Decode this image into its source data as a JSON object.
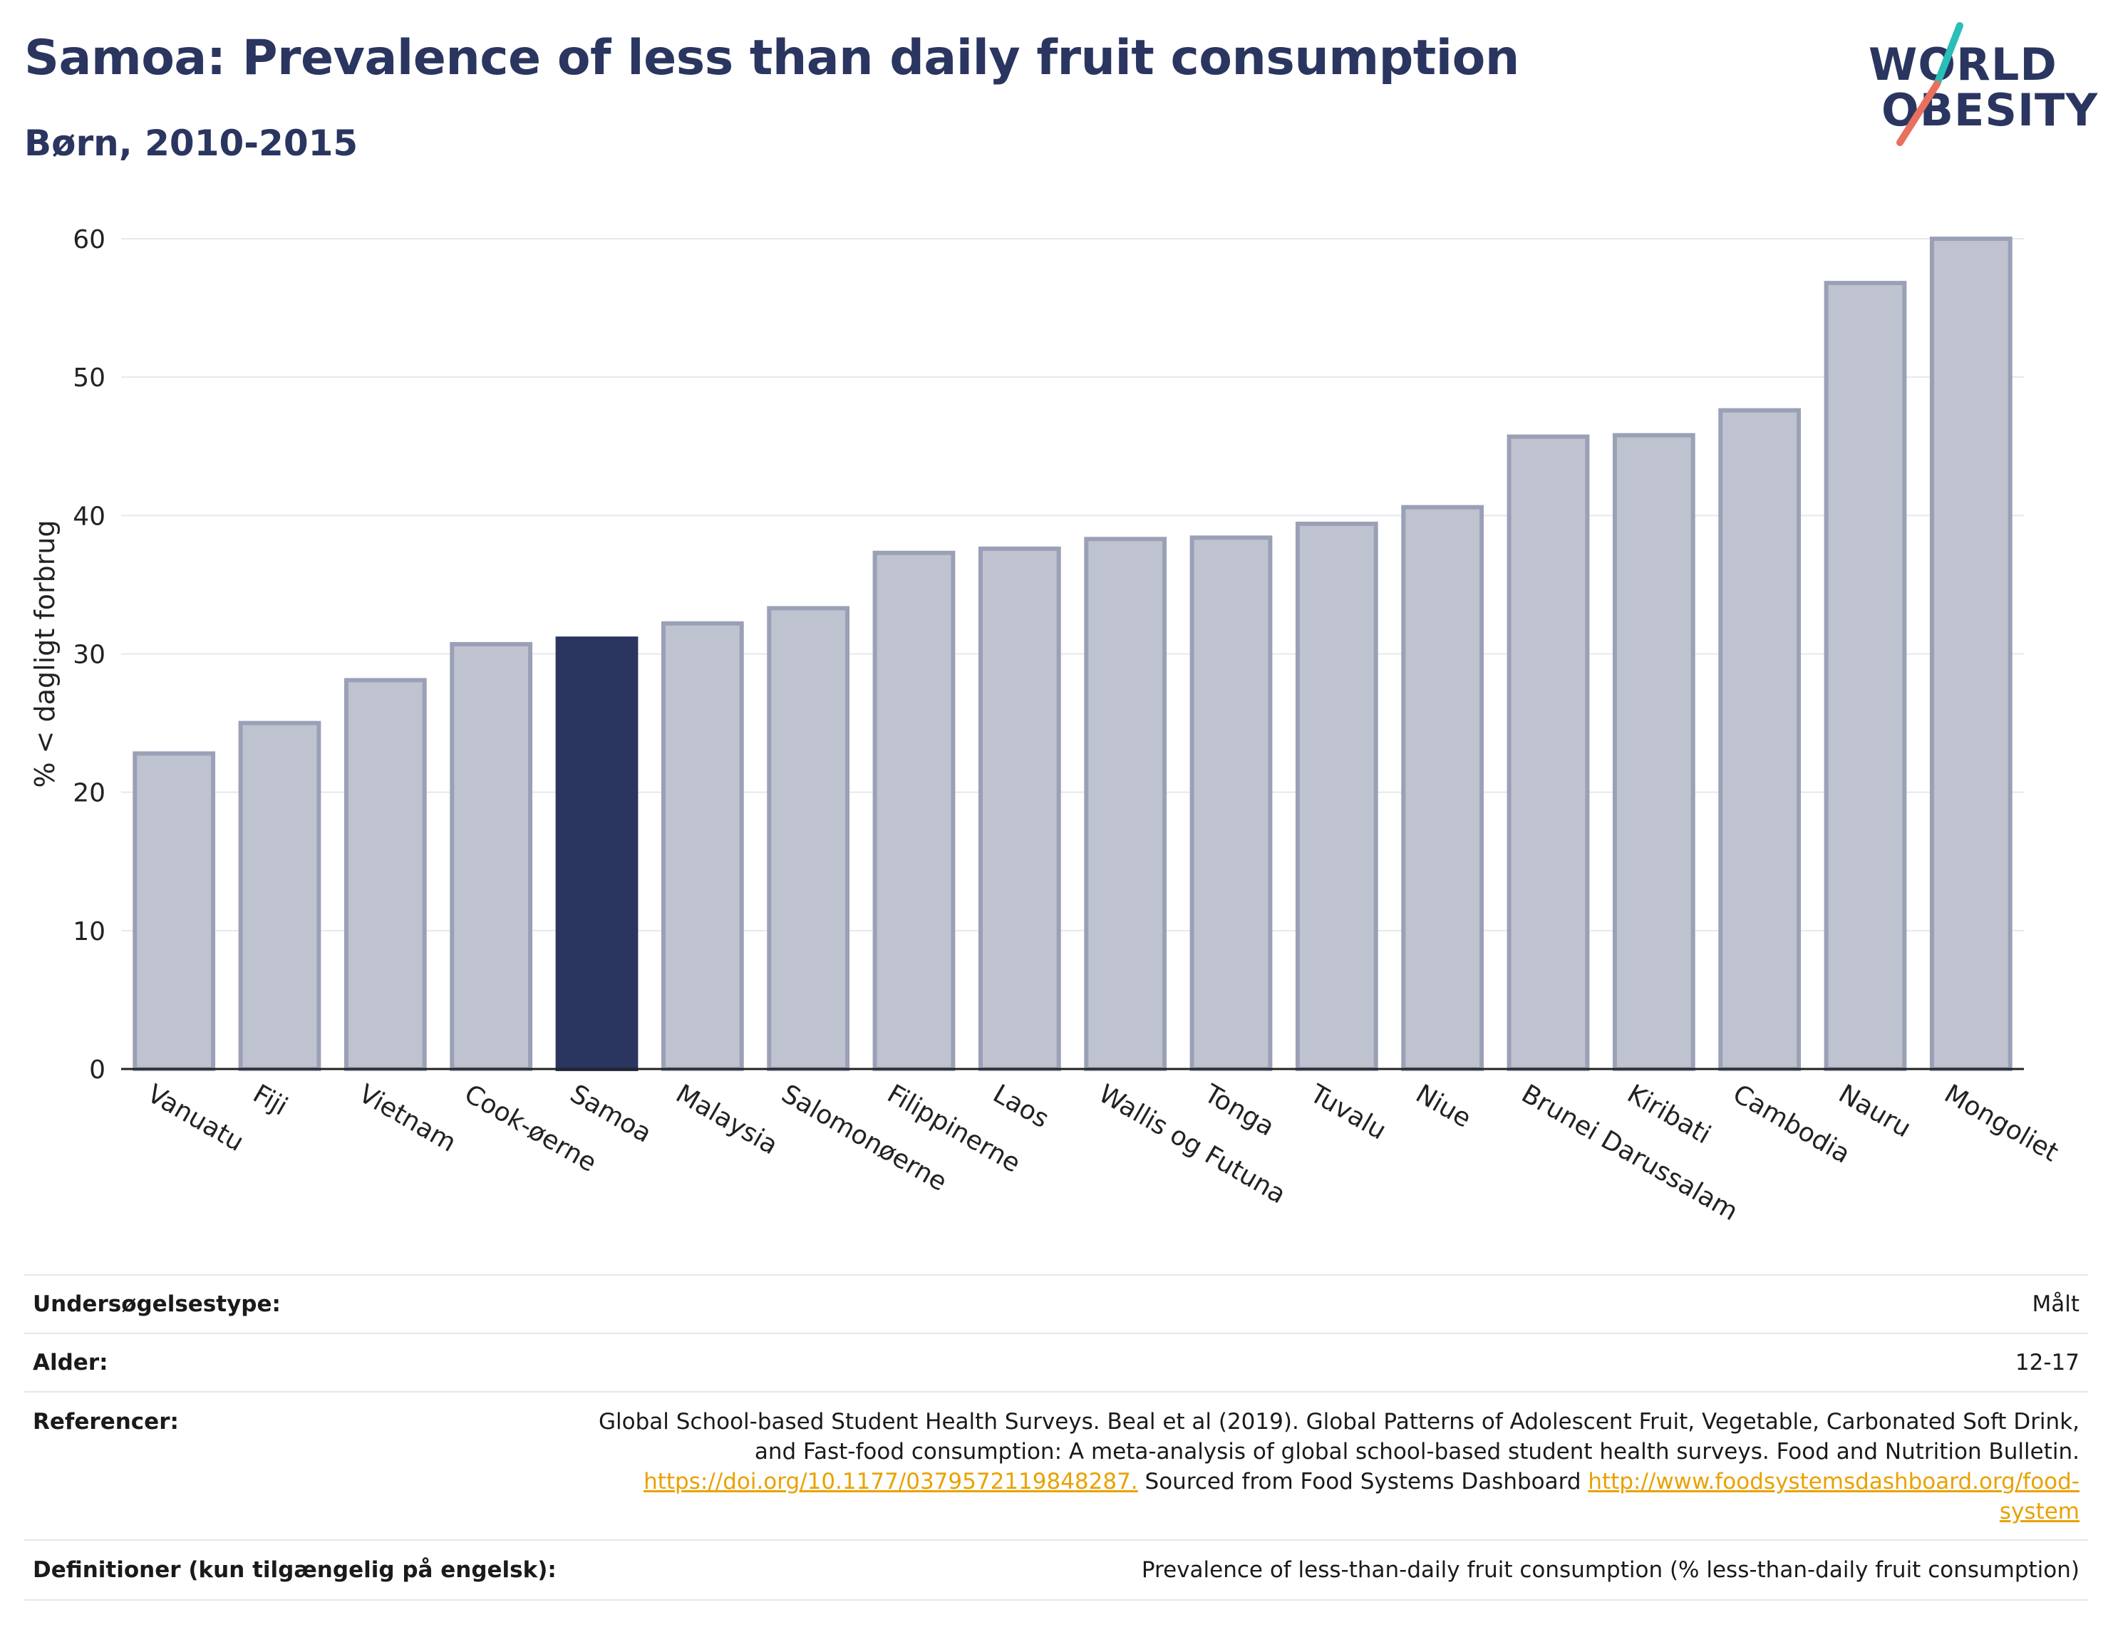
{
  "header": {
    "title": "Samoa: Prevalence of less than daily fruit consumption",
    "subtitle": "Børn, 2010-2015",
    "logo_line1": "WORLD",
    "logo_line2": "OBESITY"
  },
  "colors": {
    "highlight": "#2a3560",
    "bar": "#bfc3cf",
    "bar_stroke": "#9aa0b6",
    "logo_teal": "#2bbdb8",
    "logo_coral": "#e8705f"
  },
  "chart_data": {
    "type": "bar",
    "title": "",
    "xlabel": "",
    "ylabel": "% < dagligt forbrug",
    "ylim": [
      0,
      60
    ],
    "yticks": [
      0,
      10,
      20,
      30,
      40,
      50,
      60
    ],
    "grid": true,
    "highlight": "Samoa",
    "categories": [
      "Vanuatu",
      "Fiji",
      "Vietnam",
      "Cook-øerne",
      "Samoa",
      "Malaysia",
      "Salomonøerne",
      "Filippinerne",
      "Laos",
      "Wallis og Futuna",
      "Tonga",
      "Tuvalu",
      "Niue",
      "Brunei Darussalam",
      "Kiribati",
      "Cambodia",
      "Nauru",
      "Mongoliet"
    ],
    "values": [
      22.8,
      25.0,
      28.1,
      30.7,
      31.1,
      32.2,
      33.3,
      37.3,
      37.6,
      38.3,
      38.4,
      39.4,
      40.6,
      45.7,
      45.8,
      47.6,
      56.8,
      60.0
    ]
  },
  "info": {
    "survey_type_label": "Undersøgelsestype:",
    "survey_type_value": "Målt",
    "age_label": "Alder:",
    "age_value": "12-17",
    "references_label": "Referencer:",
    "references_line1": "Global School-based Student Health Surveys. Beal et al (2019). Global Patterns of Adolescent Fruit, Vegetable, Carbonated Soft Drink,",
    "references_line2": "and Fast-food consumption: A meta-analysis of global school-based student health surveys. Food and Nutrition Bulletin.",
    "references_doi": "https://doi.org/10.1177/0379572119848287.",
    "references_sourced": " Sourced from Food Systems Dashboard ",
    "references_url_part1": "http://www.foodsystemsdashboard.org/food-",
    "references_url_part2": "system",
    "definitions_label": "Definitioner (kun tilgængelig på engelsk):",
    "definitions_value": "Prevalence of less-than-daily fruit consumption (% less-than-daily fruit consumption)"
  }
}
